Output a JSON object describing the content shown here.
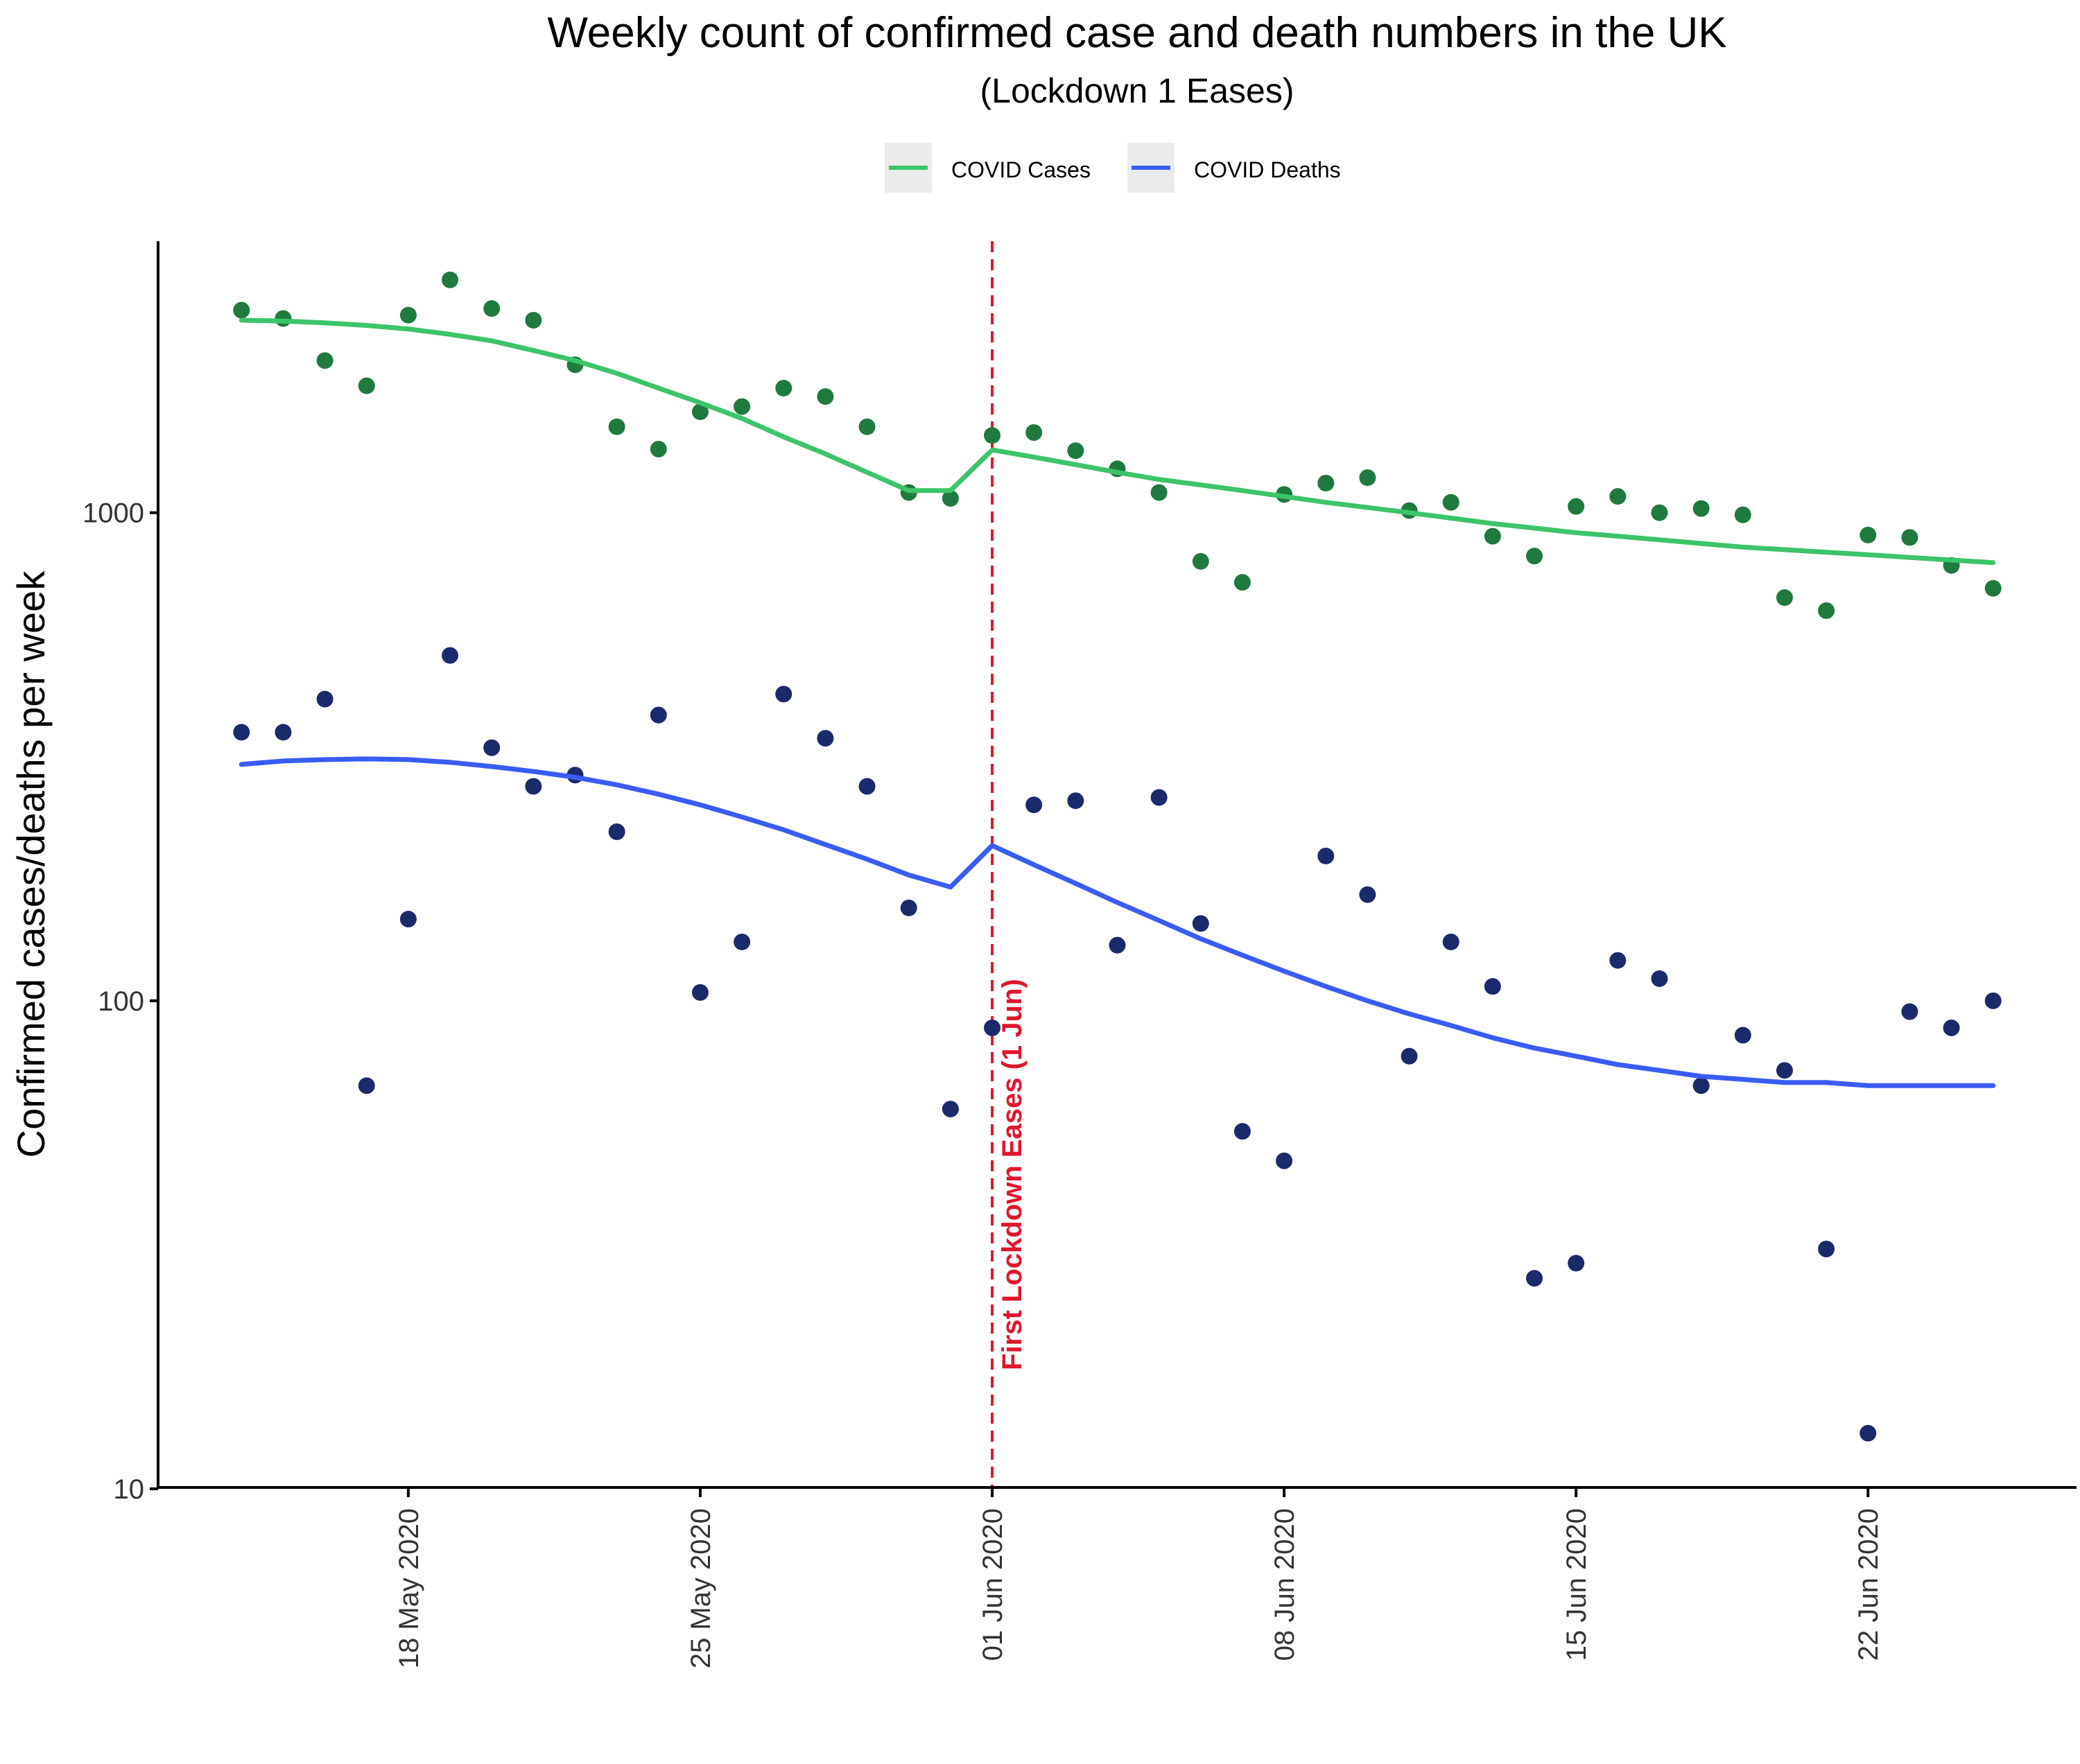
{
  "chart_data": {
    "type": "scatter",
    "title": "Weekly count of confirmed case and death numbers in the UK",
    "subtitle": "(Lockdown 1 Eases)",
    "xlabel": "",
    "ylabel": "Confirmed cases/deaths per week",
    "y_scale": "log10",
    "ylim": [
      10,
      3600
    ],
    "xlim": [
      "2020-05-12",
      "2020-06-27"
    ],
    "x_ticks": [
      "2020-05-18",
      "2020-05-25",
      "2020-06-01",
      "2020-06-08",
      "2020-06-15",
      "2020-06-22"
    ],
    "x_tick_labels": [
      "18 May 2020",
      "25 May 2020",
      "01 Jun 2020",
      "08 Jun 2020",
      "15 Jun 2020",
      "22 Jun 2020"
    ],
    "y_ticks": [
      10,
      100,
      1000
    ],
    "y_tick_labels": [
      "10",
      "100",
      "1000"
    ],
    "legend": {
      "placement": "top",
      "entries": [
        {
          "label": "COVID Cases",
          "color": "#3CC46A"
        },
        {
          "label": "COVID Deaths",
          "color": "#3A5CF5"
        }
      ]
    },
    "annotation": {
      "x": "2020-06-01",
      "label": "First Lockdown Eases (1 Jun)",
      "color": "#E0162B",
      "style": "dashed vertical line"
    },
    "grid": false,
    "series": [
      {
        "kind": "points",
        "color": "#1F7A3F",
        "dates": [
          "2020-05-14",
          "2020-05-15",
          "2020-05-16",
          "2020-05-17",
          "2020-05-18",
          "2020-05-19",
          "2020-05-20",
          "2020-05-21",
          "2020-05-22",
          "2020-05-23",
          "2020-05-24",
          "2020-05-25",
          "2020-05-26",
          "2020-05-27",
          "2020-05-28",
          "2020-05-29",
          "2020-05-30",
          "2020-05-31",
          "2020-06-01",
          "2020-06-02",
          "2020-06-03",
          "2020-06-04",
          "2020-06-05",
          "2020-06-06",
          "2020-06-07",
          "2020-06-08",
          "2020-06-09",
          "2020-06-10",
          "2020-06-11",
          "2020-06-12",
          "2020-06-13",
          "2020-06-14",
          "2020-06-15",
          "2020-06-16",
          "2020-06-17",
          "2020-06-18",
          "2020-06-19",
          "2020-06-20",
          "2020-06-21",
          "2020-06-22",
          "2020-06-23",
          "2020-06-24",
          "2020-06-25"
        ],
        "values": [
          2600,
          2500,
          2050,
          1820,
          2540,
          3000,
          2620,
          2480,
          2010,
          1500,
          1350,
          1610,
          1650,
          1800,
          1730,
          1500,
          1100,
          1070,
          1440,
          1460,
          1340,
          1230,
          1100,
          795,
          720,
          1090,
          1150,
          1180,
          1010,
          1050,
          895,
          815,
          1030,
          1080,
          1000,
          1020,
          990,
          670,
          630,
          900,
          890,
          780,
          700
        ]
      },
      {
        "kind": "points",
        "color": "#1B2A6B",
        "dates": [
          "2020-05-14",
          "2020-05-15",
          "2020-05-16",
          "2020-05-17",
          "2020-05-18",
          "2020-05-19",
          "2020-05-20",
          "2020-05-21",
          "2020-05-22",
          "2020-05-23",
          "2020-05-24",
          "2020-05-25",
          "2020-05-26",
          "2020-05-27",
          "2020-05-28",
          "2020-05-29",
          "2020-05-30",
          "2020-05-31",
          "2020-06-01",
          "2020-06-02",
          "2020-06-03",
          "2020-06-04",
          "2020-06-05",
          "2020-06-06",
          "2020-06-07",
          "2020-06-08",
          "2020-06-09",
          "2020-06-10",
          "2020-06-11",
          "2020-06-12",
          "2020-06-13",
          "2020-06-14",
          "2020-06-15",
          "2020-06-16",
          "2020-06-17",
          "2020-06-18",
          "2020-06-19",
          "2020-06-20",
          "2020-06-21",
          "2020-06-22",
          "2020-06-23",
          "2020-06-24",
          "2020-06-25"
        ],
        "values": [
          355,
          355,
          415,
          67,
          147,
          510,
          330,
          275,
          290,
          222,
          385,
          104,
          132,
          425,
          345,
          275,
          155,
          60,
          88,
          252,
          257,
          130,
          261,
          144,
          54,
          47,
          198,
          165,
          77,
          132,
          107,
          27,
          29,
          121,
          111,
          67,
          85,
          72,
          31,
          13,
          95,
          88,
          100
        ]
      },
      {
        "name": "COVID Cases",
        "kind": "line",
        "color": "#3CC46A",
        "segments": [
          {
            "dates": [
              "2020-05-14",
              "2020-05-15",
              "2020-05-16",
              "2020-05-17",
              "2020-05-18",
              "2020-05-19",
              "2020-05-20",
              "2020-05-21",
              "2020-05-22",
              "2020-05-23",
              "2020-05-24",
              "2020-05-25",
              "2020-05-26",
              "2020-05-27",
              "2020-05-28",
              "2020-05-29",
              "2020-05-30",
              "2020-05-31"
            ],
            "values": [
              2480,
              2470,
              2450,
              2420,
              2380,
              2320,
              2250,
              2150,
              2050,
              1930,
              1800,
              1680,
              1560,
              1430,
              1320,
              1210,
              1110,
              1110
            ]
          },
          {
            "dates": [
              "2020-05-31",
              "2020-06-01",
              "2020-06-02",
              "2020-06-03",
              "2020-06-04",
              "2020-06-05",
              "2020-06-06",
              "2020-06-07",
              "2020-06-08",
              "2020-06-09",
              "2020-06-10",
              "2020-06-11",
              "2020-06-12",
              "2020-06-13",
              "2020-06-14",
              "2020-06-15",
              "2020-06-16",
              "2020-06-17",
              "2020-06-18",
              "2020-06-19",
              "2020-06-20",
              "2020-06-21",
              "2020-06-22",
              "2020-06-23",
              "2020-06-24",
              "2020-06-25"
            ],
            "values": [
              1110,
              1345,
              1300,
              1255,
              1210,
              1170,
              1140,
              1110,
              1080,
              1050,
              1025,
              1000,
              975,
              950,
              930,
              910,
              895,
              880,
              865,
              850,
              840,
              830,
              820,
              810,
              800,
              790
            ]
          }
        ]
      },
      {
        "name": "COVID Deaths",
        "kind": "line",
        "color": "#3A5CF5",
        "segments": [
          {
            "dates": [
              "2020-05-14",
              "2020-05-15",
              "2020-05-16",
              "2020-05-17",
              "2020-05-18",
              "2020-05-19",
              "2020-05-20",
              "2020-05-21",
              "2020-05-22",
              "2020-05-23",
              "2020-05-24",
              "2020-05-25",
              "2020-05-26",
              "2020-05-27",
              "2020-05-28",
              "2020-05-29",
              "2020-05-30",
              "2020-05-31"
            ],
            "values": [
              305,
              310,
              312,
              313,
              312,
              308,
              302,
              295,
              287,
              277,
              265,
              252,
              238,
              224,
              209,
              195,
              181,
              171
            ]
          },
          {
            "dates": [
              "2020-05-31",
              "2020-06-01",
              "2020-06-02",
              "2020-06-03",
              "2020-06-04",
              "2020-06-05",
              "2020-06-06",
              "2020-06-07",
              "2020-06-08",
              "2020-06-09",
              "2020-06-10",
              "2020-06-11",
              "2020-06-12",
              "2020-06-13",
              "2020-06-14",
              "2020-06-15",
              "2020-06-16",
              "2020-06-17",
              "2020-06-18",
              "2020-06-19",
              "2020-06-20",
              "2020-06-21",
              "2020-06-22",
              "2020-06-23",
              "2020-06-24",
              "2020-06-25"
            ],
            "values": [
              171,
              208,
              190,
              174,
              159,
              146,
              134,
              124,
              115,
              107,
              100,
              94,
              89,
              84,
              80,
              77,
              74,
              72,
              70,
              69,
              68,
              68,
              67,
              67,
              67,
              67
            ]
          }
        ]
      }
    ]
  }
}
